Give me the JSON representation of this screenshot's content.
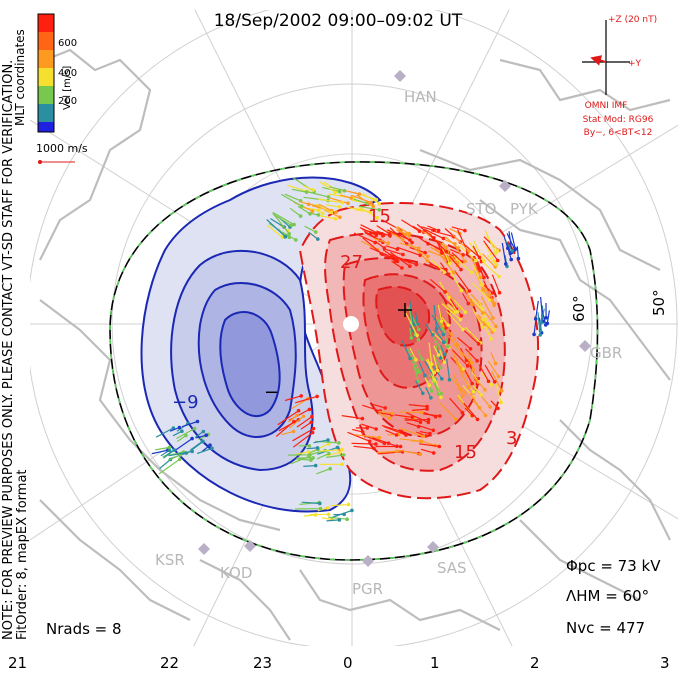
{
  "title": "18/Sep/2002 09:00–09:02 UT",
  "colorbar": {
    "label": "Vel [m/s]",
    "ticks": [
      "600",
      "400",
      "200"
    ],
    "colors": [
      "#2020e0",
      "#2a8fa0",
      "#78c850",
      "#f5e030",
      "#ff9a20",
      "#ff2010"
    ]
  },
  "coords_label": "MLT coordinates",
  "note": "NOTE: FOR PREVIEW PURPOSES ONLY. PLEASE CONTACT VT-SD STAFF FOR VERIFICATION.",
  "fit_order": "FitOrder: 8, mapEX format",
  "scale_vector": "1000 m/s",
  "imf": {
    "z_label": "+Z (20 nT)",
    "y_label": "+Y",
    "title": "OMNI IMF",
    "stat_mod": "Stat Mod: RG96",
    "condition": "By−, 6<BT<12"
  },
  "stations": [
    "HAN",
    "STO",
    "PYK",
    "GBR",
    "SAS",
    "PGR",
    "KOD",
    "KSR"
  ],
  "latitudes": [
    "60°",
    "50°"
  ],
  "mlt_labels": [
    "21",
    "22",
    "23",
    "0",
    "1",
    "2",
    "3"
  ],
  "contour_labels": {
    "neg_a": "−9",
    "neg_b": "−",
    "pos_a": "15",
    "pos_b": "27",
    "pos_c": "15",
    "pos_d": "3",
    "pos_e": "+"
  },
  "stats": {
    "phi_pc": "Φpc = 73 kV",
    "lambda_hm": "ΛHM = 60°",
    "n_vc": "Nvc = 477",
    "n_rads": "Nrads = 8"
  },
  "colors": {
    "negative": "#1a28b4",
    "positive": "#e01818",
    "coast": "#bdbdbd",
    "grid": "#d0d0d0",
    "boundary_dash": "#5ad05a"
  }
}
